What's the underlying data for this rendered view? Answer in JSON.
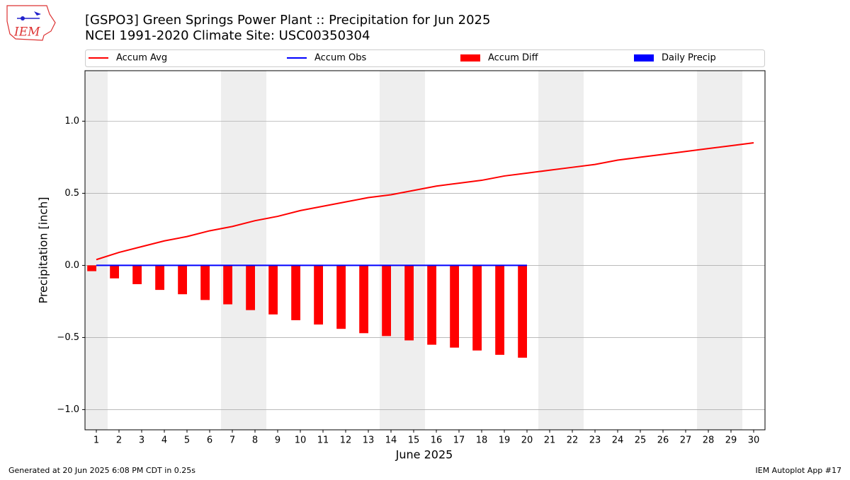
{
  "logo_text": "IEM",
  "chart_data": {
    "type": "bar",
    "title": "[GSPO3] Green Springs Power Plant :: Precipitation for Jun 2025",
    "subtitle": "NCEI 1991-2020 Climate Site: USC00350304",
    "x_label": "June 2025",
    "y_label": "Precipitation [inch]",
    "x": [
      1,
      2,
      3,
      4,
      5,
      6,
      7,
      8,
      9,
      10,
      11,
      12,
      13,
      14,
      15,
      16,
      17,
      18,
      19,
      20,
      21,
      22,
      23,
      24,
      25,
      26,
      27,
      28,
      29,
      30
    ],
    "xlim": [
      0.5,
      30.5
    ],
    "xticks": [
      1,
      2,
      3,
      4,
      5,
      6,
      7,
      8,
      9,
      10,
      11,
      12,
      13,
      14,
      15,
      16,
      17,
      18,
      19,
      20,
      21,
      22,
      23,
      24,
      25,
      26,
      27,
      28,
      29,
      30
    ],
    "ylim": [
      -1.14,
      1.35
    ],
    "yticks": [
      {
        "value": -1.0,
        "label": "−1.0"
      },
      {
        "value": -0.5,
        "label": "−0.5"
      },
      {
        "value": 0.0,
        "label": "0.0"
      },
      0.5,
      {
        "value": 1.0,
        "label": "1.0"
      }
    ],
    "grid": true,
    "shaded_days": [
      1,
      7,
      8,
      14,
      15,
      21,
      22,
      28,
      29
    ],
    "shade_color": "#eeeeee",
    "series": [
      {
        "name": "Accum Avg",
        "type": "line",
        "color": "#ff0000",
        "values": [
          0.04,
          0.09,
          0.13,
          0.17,
          0.2,
          0.24,
          0.27,
          0.31,
          0.34,
          0.38,
          0.41,
          0.44,
          0.47,
          0.49,
          0.52,
          0.55,
          0.57,
          0.59,
          0.62,
          0.64,
          0.66,
          0.68,
          0.7,
          0.73,
          0.75,
          0.77,
          0.79,
          0.81,
          0.83,
          0.85
        ]
      },
      {
        "name": "Accum Obs",
        "type": "line",
        "color": "#0000ff",
        "values": [
          0,
          0,
          0,
          0,
          0,
          0,
          0,
          0,
          0,
          0,
          0,
          0,
          0,
          0,
          0,
          0,
          0,
          0,
          0,
          0,
          null,
          null,
          null,
          null,
          null,
          null,
          null,
          null,
          null,
          null
        ]
      },
      {
        "name": "Accum Diff",
        "type": "bar",
        "color": "#ff0000",
        "values": [
          -0.04,
          -0.09,
          -0.13,
          -0.17,
          -0.2,
          -0.24,
          -0.27,
          -0.31,
          -0.34,
          -0.38,
          -0.41,
          -0.44,
          -0.47,
          -0.49,
          -0.52,
          -0.55,
          -0.57,
          -0.59,
          -0.62,
          -0.64,
          null,
          null,
          null,
          null,
          null,
          null,
          null,
          null,
          null,
          null
        ]
      },
      {
        "name": "Daily Precip",
        "type": "bar",
        "color": "#0000ff",
        "values": [
          0,
          0,
          0,
          0,
          0,
          0,
          0,
          0,
          0,
          0,
          0,
          0,
          0,
          0,
          0,
          0,
          0,
          0,
          0,
          0,
          null,
          null,
          null,
          null,
          null,
          null,
          null,
          null,
          null,
          null
        ]
      }
    ],
    "footer_left": "Generated at 20 Jun 2025 6:08 PM CDT in 0.25s",
    "footer_right": "IEM Autoplot App #17"
  }
}
